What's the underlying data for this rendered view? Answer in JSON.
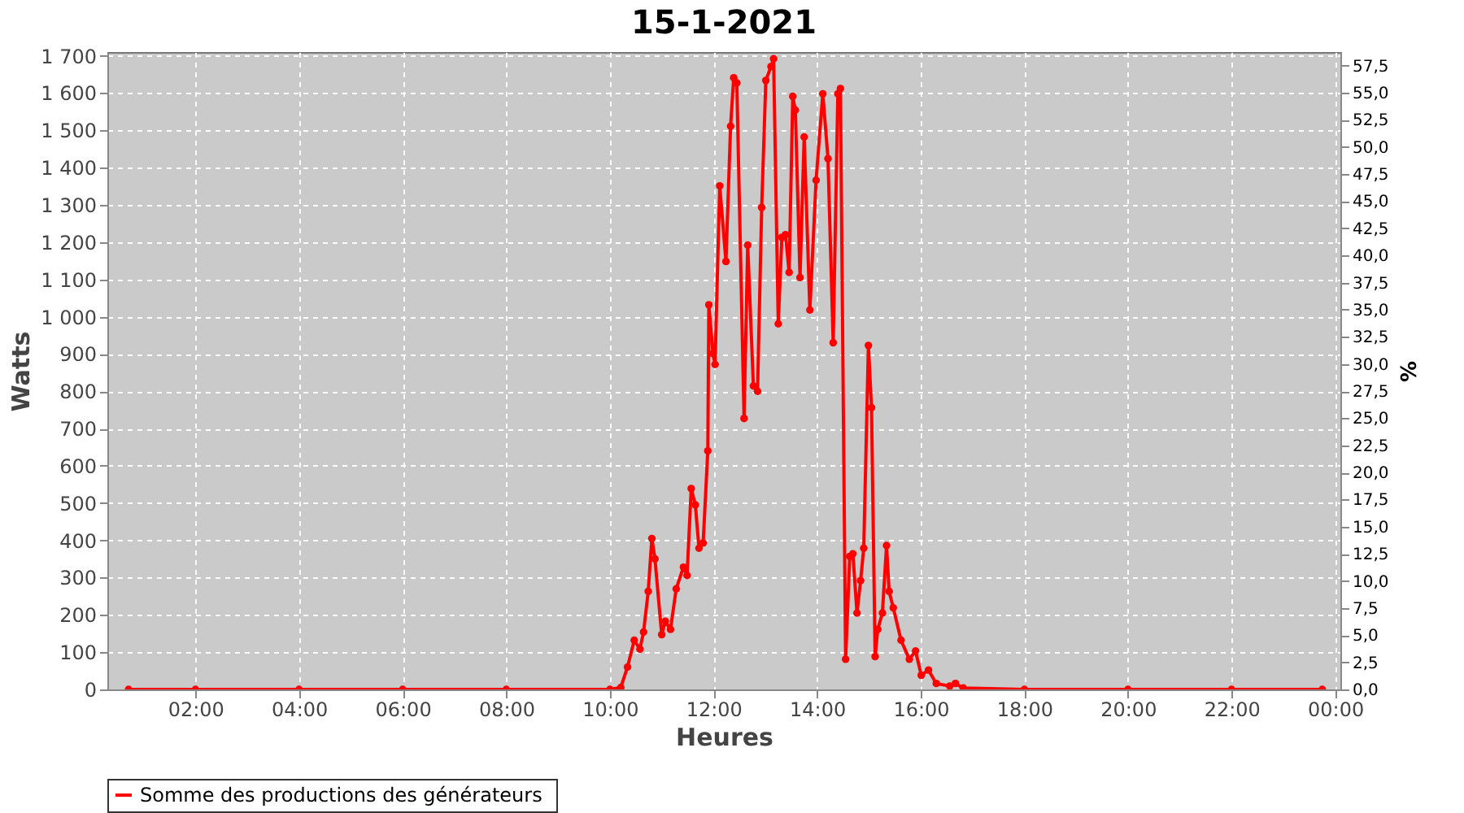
{
  "chart_data": {
    "type": "line",
    "title": "15-1-2021",
    "xlabel": "Heures",
    "ylabel": "Watts",
    "y2label": "%",
    "xlim": [
      0.3,
      24.1
    ],
    "xticks": [
      {
        "value": 2,
        "label": "02:00"
      },
      {
        "value": 4,
        "label": "04:00"
      },
      {
        "value": 6,
        "label": "06:00"
      },
      {
        "value": 8,
        "label": "08:00"
      },
      {
        "value": 10,
        "label": "10:00"
      },
      {
        "value": 12,
        "label": "12:00"
      },
      {
        "value": 14,
        "label": "14:00"
      },
      {
        "value": 16,
        "label": "16:00"
      },
      {
        "value": 18,
        "label": "18:00"
      },
      {
        "value": 20,
        "label": "20:00"
      },
      {
        "value": 22,
        "label": "22:00"
      },
      {
        "value": 24,
        "label": "00:00"
      }
    ],
    "ylim": [
      0,
      1710
    ],
    "yticks": [
      0,
      100,
      200,
      300,
      400,
      500,
      600,
      700,
      800,
      900,
      {
        "value": 1000,
        "label": "1 000"
      },
      {
        "value": 1100,
        "label": "1 100"
      },
      {
        "value": 1200,
        "label": "1 200"
      },
      {
        "value": 1300,
        "label": "1 300"
      },
      {
        "value": 1400,
        "label": "1 400"
      },
      {
        "value": 1500,
        "label": "1 500"
      },
      {
        "value": 1600,
        "label": "1 600"
      },
      {
        "value": 1700,
        "label": "1 700"
      }
    ],
    "y2lim": [
      0,
      58.75
    ],
    "y2ticks": [
      {
        "value": 0,
        "label": "0,0"
      },
      {
        "value": 2.5,
        "label": "2,5"
      },
      {
        "value": 5,
        "label": "5,0"
      },
      {
        "value": 7.5,
        "label": "7,5"
      },
      {
        "value": 10,
        "label": "10,0"
      },
      {
        "value": 12.5,
        "label": "12,5"
      },
      {
        "value": 15,
        "label": "15,0"
      },
      {
        "value": 17.5,
        "label": "17,5"
      },
      {
        "value": 20,
        "label": "20,0"
      },
      {
        "value": 22.5,
        "label": "22,5"
      },
      {
        "value": 25,
        "label": "25,0"
      },
      {
        "value": 27.5,
        "label": "27,5"
      },
      {
        "value": 30,
        "label": "30,0"
      },
      {
        "value": 32.5,
        "label": "32,5"
      },
      {
        "value": 35,
        "label": "35,0"
      },
      {
        "value": 37.5,
        "label": "37,5"
      },
      {
        "value": 40,
        "label": "40,0"
      },
      {
        "value": 42.5,
        "label": "42,5"
      },
      {
        "value": 45,
        "label": "45,0"
      },
      {
        "value": 47.5,
        "label": "47,5"
      },
      {
        "value": 50,
        "label": "50,0"
      },
      {
        "value": 52.5,
        "label": "52,5"
      },
      {
        "value": 55,
        "label": "55,0"
      },
      {
        "value": 57.5,
        "label": "57,5"
      }
    ],
    "grid": true,
    "legend": "bottom",
    "marker": "circle",
    "line_style": "solid",
    "series": [
      {
        "name": "Somme des productions des  générateurs",
        "color": "#ff0000",
        "x": [
          0.71,
          2,
          4,
          6,
          8,
          10,
          10.21,
          10.34,
          10.47,
          10.58,
          10.65,
          10.74,
          10.81,
          10.87,
          11.0,
          11.07,
          11.17,
          11.28,
          11.42,
          11.49,
          11.57,
          11.65,
          11.72,
          11.8,
          11.89,
          11.91,
          11.99,
          12.03,
          12.12,
          12.24,
          12.33,
          12.39,
          12.45,
          12.59,
          12.66,
          12.77,
          12.85,
          12.93,
          13.01,
          13.11,
          13.16,
          13.25,
          13.32,
          13.39,
          13.46,
          13.53,
          13.58,
          13.67,
          13.75,
          13.86,
          13.98,
          14.11,
          14.21,
          14.31,
          14.4,
          14.45,
          14.55,
          14.63,
          14.69,
          14.77,
          14.84,
          14.9,
          14.99,
          15.05,
          15.12,
          15.17,
          15.26,
          15.34,
          15.39,
          15.47,
          15.62,
          15.78,
          15.9,
          16.01,
          16.15,
          16.3,
          16.56,
          16.67,
          16.82,
          18,
          20,
          22,
          23.75
        ],
        "values": [
          0,
          0,
          0,
          0,
          0,
          0,
          5,
          60,
          132,
          108,
          154,
          263,
          405,
          350,
          147,
          183,
          161,
          270,
          328,
          306,
          539,
          495,
          379,
          393,
          640,
          1032,
          901,
          872,
          1351,
          1148,
          1511,
          1641,
          1627,
          727,
          1192,
          814,
          800,
          1293,
          1634,
          1671,
          1692,
          981,
          1213,
          1220,
          1119,
          1591,
          1554,
          1105,
          1482,
          1018,
          1366,
          1598,
          1424,
          930,
          1598,
          1612,
          81,
          357,
          364,
          205,
          292,
          379,
          923,
          756,
          88,
          161,
          205,
          386,
          263,
          219,
          132,
          81,
          103,
          38,
          52,
          16,
          9,
          16,
          4,
          0,
          0,
          0,
          0
        ]
      }
    ]
  }
}
